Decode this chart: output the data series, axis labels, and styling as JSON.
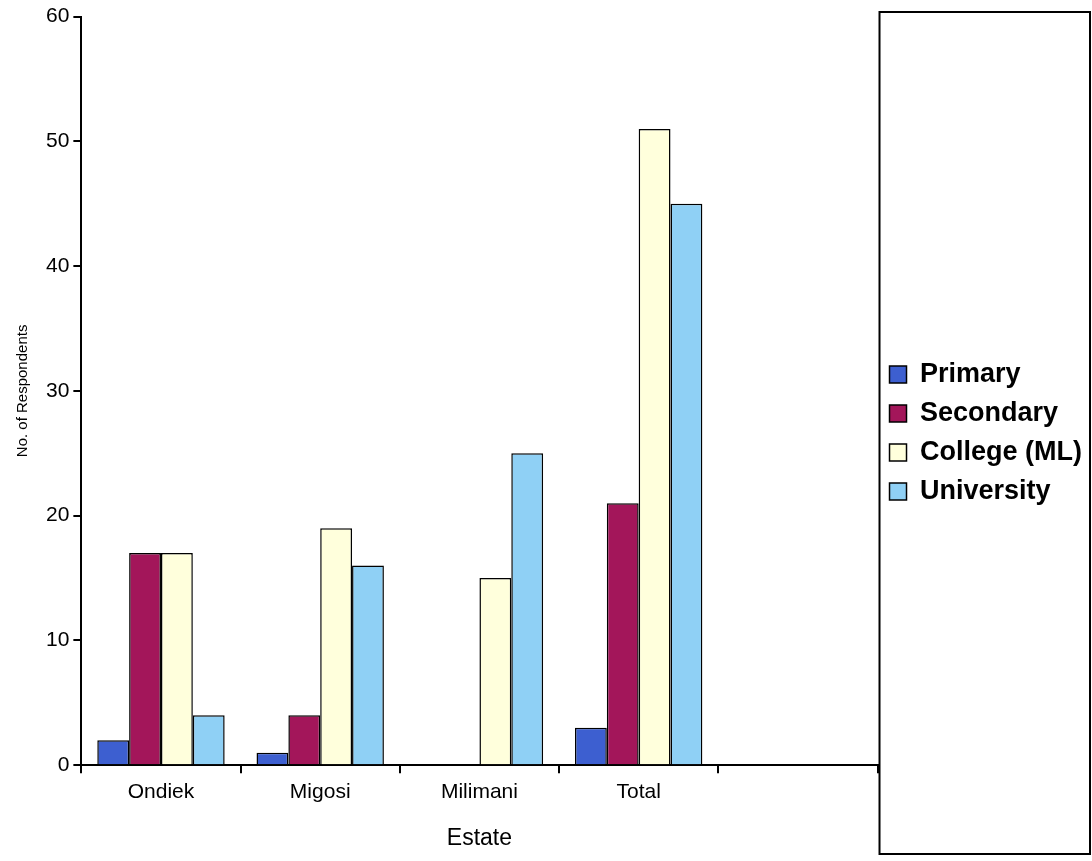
{
  "chart_data": {
    "type": "bar",
    "xlabel": "Estate",
    "ylabel": "No. of Respondents",
    "categories": [
      "Ondiek",
      "Migosi",
      "Milimani",
      "Total",
      null
    ],
    "series": [
      {
        "name": "Primary",
        "color": "#3d5fd0",
        "values": [
          2,
          1,
          null,
          3,
          null
        ]
      },
      {
        "name": "Secondary",
        "color": "#a3165a",
        "values": [
          17,
          4,
          null,
          21,
          null
        ]
      },
      {
        "name": "College (ML)",
        "color": "#ffffdc",
        "values": [
          17,
          19,
          15,
          51,
          null
        ]
      },
      {
        "name": "University",
        "color": "#8fd0f5",
        "values": [
          4,
          16,
          25,
          45,
          null
        ]
      }
    ],
    "ylim": [
      0,
      60
    ],
    "yticks": [
      0,
      10,
      20,
      30,
      40,
      50,
      60
    ],
    "grid": false,
    "legend": "right"
  }
}
